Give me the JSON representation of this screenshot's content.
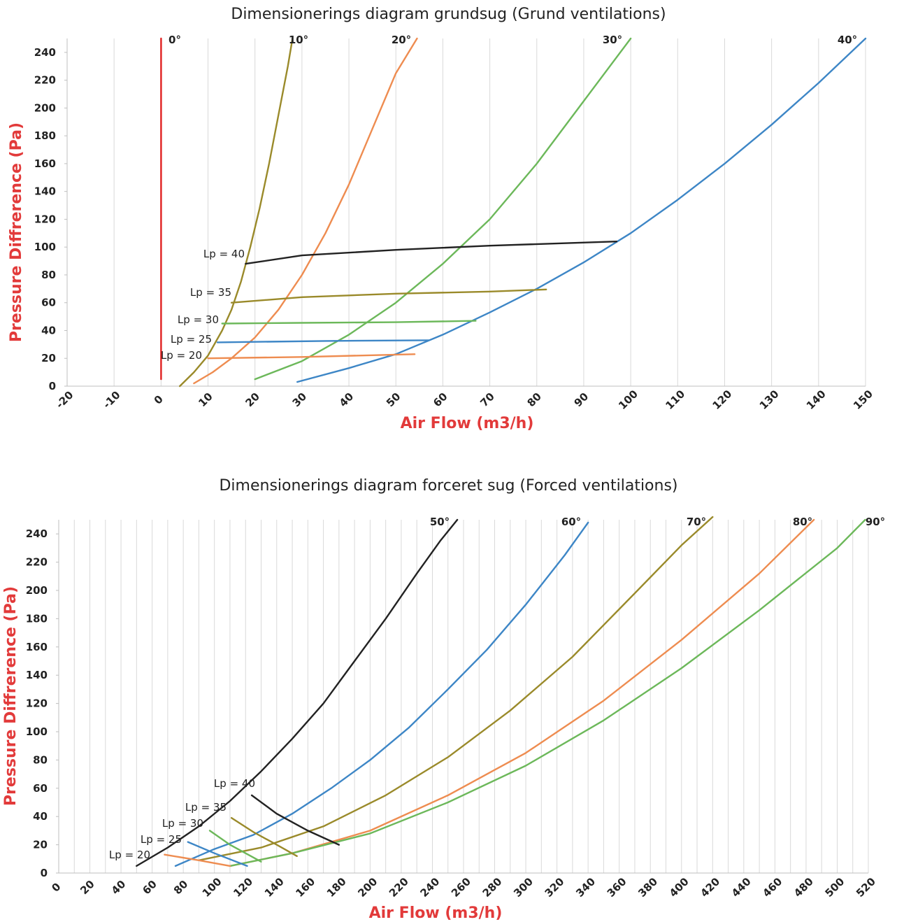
{
  "chart_data": [
    {
      "type": "line",
      "title": "Dimensionerings diagram grundsug (Grund ventilations)",
      "xlabel": "Air Flow (m3/h)",
      "ylabel": "Pressure  Diffrerence (Pa)",
      "xlim": [
        -20,
        150
      ],
      "ylim": [
        0,
        250
      ],
      "x_ticks": [
        -20,
        -10,
        0,
        10,
        20,
        30,
        40,
        50,
        60,
        70,
        80,
        90,
        100,
        110,
        120,
        130,
        140,
        150
      ],
      "y_ticks": [
        0,
        20,
        40,
        60,
        80,
        100,
        120,
        140,
        160,
        180,
        200,
        220,
        240
      ],
      "grid": true,
      "series": [
        {
          "name": "0°",
          "color": "#e02020",
          "points": [
            [
              0,
              5
            ],
            [
              0,
              250
            ]
          ]
        },
        {
          "name": "10°",
          "color": "#9a8a2a",
          "points": [
            [
              4,
              0
            ],
            [
              7,
              10
            ],
            [
              10,
              22
            ],
            [
              13,
              40
            ],
            [
              15,
              55
            ],
            [
              17,
              75
            ],
            [
              19,
              100
            ],
            [
              21,
              128
            ],
            [
              23,
              160
            ],
            [
              25,
              195
            ],
            [
              27,
              230
            ],
            [
              28,
              250
            ]
          ]
        },
        {
          "name": "20°",
          "color": "#ee8c50",
          "points": [
            [
              7,
              2
            ],
            [
              11,
              10
            ],
            [
              15,
              20
            ],
            [
              20,
              35
            ],
            [
              25,
              55
            ],
            [
              30,
              80
            ],
            [
              35,
              110
            ],
            [
              40,
              145
            ],
            [
              45,
              185
            ],
            [
              50,
              225
            ],
            [
              54.5,
              250
            ]
          ]
        },
        {
          "name": "30°",
          "color": "#6cb85a",
          "points": [
            [
              20,
              5
            ],
            [
              30,
              18
            ],
            [
              40,
              37
            ],
            [
              50,
              60
            ],
            [
              60,
              88
            ],
            [
              70,
              120
            ],
            [
              80,
              160
            ],
            [
              90,
              205
            ],
            [
              100,
              250
            ]
          ]
        },
        {
          "name": "40°",
          "color": "#3d86c6",
          "points": [
            [
              29,
              3
            ],
            [
              40,
              13
            ],
            [
              50,
              23
            ],
            [
              60,
              37
            ],
            [
              70,
              53
            ],
            [
              80,
              70
            ],
            [
              90,
              89
            ],
            [
              100,
              110
            ],
            [
              110,
              134
            ],
            [
              120,
              160
            ],
            [
              130,
              188
            ],
            [
              140,
              218
            ],
            [
              150,
              250
            ]
          ]
        }
      ],
      "lp_lines": [
        {
          "label": "Lp = 40",
          "color": "#222222",
          "points": [
            [
              18,
              88
            ],
            [
              30,
              94
            ],
            [
              50,
              98
            ],
            [
              70,
              101
            ],
            [
              97,
              104
            ]
          ]
        },
        {
          "label": "Lp = 35",
          "color": "#9a8a2a",
          "points": [
            [
              15,
              60
            ],
            [
              30,
              64
            ],
            [
              50,
              66.5
            ],
            [
              70,
              68
            ],
            [
              82,
              69.5
            ]
          ]
        },
        {
          "label": "Lp = 30",
          "color": "#6cb85a",
          "points": [
            [
              13,
              45
            ],
            [
              30,
              45.5
            ],
            [
              50,
              46
            ],
            [
              67,
              47
            ]
          ]
        },
        {
          "label": "Lp = 25",
          "color": "#3d86c6",
          "points": [
            [
              12,
              31.5
            ],
            [
              35,
              32.5
            ],
            [
              57,
              33
            ]
          ]
        },
        {
          "label": "Lp = 20",
          "color": "#ee8c50",
          "points": [
            [
              10,
              20
            ],
            [
              30,
              21
            ],
            [
              54,
              23
            ]
          ]
        }
      ]
    },
    {
      "type": "line",
      "title": "Dimensionerings diagram forceret sug (Forced ventilations)",
      "xlabel": "Air Flow (m3/h)",
      "ylabel": "Pressure  Diffrerence (Pa)",
      "xlim": [
        0,
        520
      ],
      "ylim": [
        0,
        250
      ],
      "x_ticks": [
        0,
        20,
        40,
        60,
        80,
        100,
        120,
        140,
        160,
        180,
        200,
        220,
        240,
        260,
        280,
        300,
        320,
        340,
        360,
        380,
        400,
        420,
        440,
        460,
        480,
        500,
        520
      ],
      "y_ticks": [
        0,
        20,
        40,
        60,
        80,
        100,
        120,
        140,
        160,
        180,
        200,
        220,
        240
      ],
      "grid": true,
      "series": [
        {
          "name": "50°",
          "color": "#222222",
          "points": [
            [
              50,
              5
            ],
            [
              70,
              18
            ],
            [
              90,
              33
            ],
            [
              110,
              51
            ],
            [
              130,
              72
            ],
            [
              150,
              95
            ],
            [
              170,
              120
            ],
            [
              190,
              150
            ],
            [
              210,
              180
            ],
            [
              230,
              212
            ],
            [
              245,
              235
            ],
            [
              256,
              250
            ]
          ]
        },
        {
          "name": "60°",
          "color": "#3d86c6",
          "points": [
            [
              75,
              5
            ],
            [
              100,
              17
            ],
            [
              125,
              27
            ],
            [
              150,
              42
            ],
            [
              175,
              60
            ],
            [
              200,
              80
            ],
            [
              225,
              103
            ],
            [
              250,
              130
            ],
            [
              275,
              158
            ],
            [
              300,
              190
            ],
            [
              325,
              225
            ],
            [
              340,
              248
            ]
          ]
        },
        {
          "name": "70°",
          "color": "#9a8a2a",
          "points": [
            [
              90,
              9
            ],
            [
              130,
              18
            ],
            [
              170,
              33
            ],
            [
              210,
              55
            ],
            [
              250,
              82
            ],
            [
              290,
              115
            ],
            [
              330,
              153
            ],
            [
              370,
              198
            ],
            [
              400,
              232
            ],
            [
              420,
              252
            ]
          ]
        },
        {
          "name": "80°",
          "color": "#ee8c50",
          "points": [
            [
              110,
              5
            ],
            [
              150,
              14
            ],
            [
              200,
              30
            ],
            [
              250,
              55
            ],
            [
              300,
              85
            ],
            [
              350,
              122
            ],
            [
              400,
              165
            ],
            [
              450,
              212
            ],
            [
              485,
              250
            ]
          ]
        },
        {
          "name": "90°",
          "color": "#6cb85a",
          "points": [
            [
              110,
              5
            ],
            [
              150,
              14
            ],
            [
              200,
              28
            ],
            [
              250,
              50
            ],
            [
              300,
              76
            ],
            [
              350,
              108
            ],
            [
              400,
              145
            ],
            [
              450,
              186
            ],
            [
              500,
              230
            ],
            [
              518,
              250
            ]
          ]
        }
      ],
      "lp_lines": [
        {
          "label": "Lp = 40",
          "color": "#222222",
          "points": [
            [
              124,
              55
            ],
            [
              140,
              42
            ],
            [
              160,
              30
            ],
            [
              180,
              20
            ]
          ]
        },
        {
          "label": "Lp = 35",
          "color": "#9a8a2a",
          "points": [
            [
              111,
              39
            ],
            [
              125,
              29
            ],
            [
              140,
              20
            ],
            [
              153,
              12
            ]
          ]
        },
        {
          "label": "Lp = 30",
          "color": "#6cb85a",
          "points": [
            [
              97,
              30
            ],
            [
              110,
              20
            ],
            [
              130,
              8
            ]
          ]
        },
        {
          "label": "Lp = 25",
          "color": "#3d86c6",
          "points": [
            [
              83,
              22
            ],
            [
              100,
              14
            ],
            [
              121,
              5
            ]
          ]
        },
        {
          "label": "Lp = 20",
          "color": "#ee8c50",
          "points": [
            [
              68,
              13
            ],
            [
              90,
              9
            ],
            [
              110,
              5
            ]
          ]
        }
      ]
    }
  ]
}
